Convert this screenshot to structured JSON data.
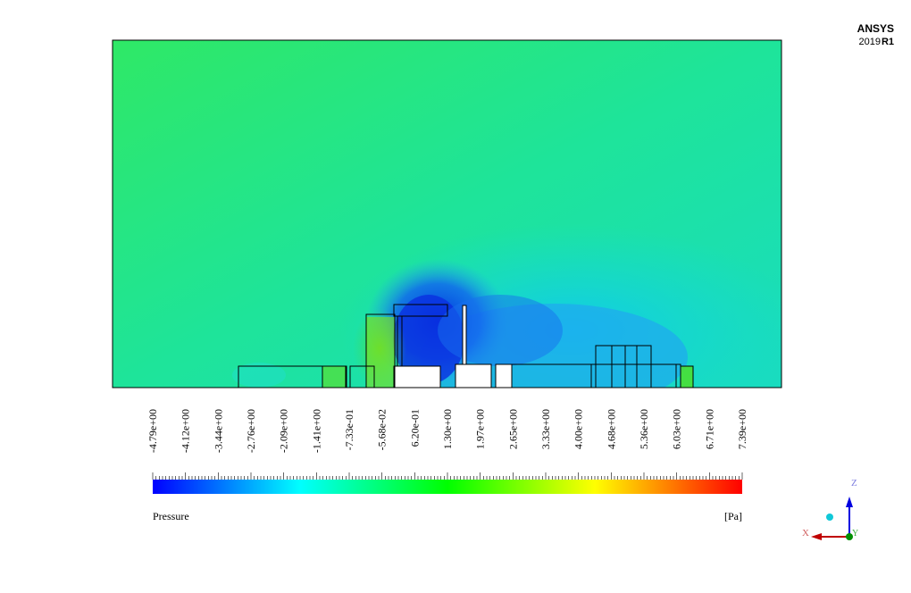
{
  "logo": {
    "name": "ANSYS",
    "version": "2019",
    "release": "R1"
  },
  "legend": {
    "ticks": [
      "-4.79e+00",
      "-4.12e+00",
      "-3.44e+00",
      "-2.76e+00",
      "-2.09e+00",
      "-1.41e+00",
      "-7.33e-01",
      "-5.68e-02",
      "6.20e-01",
      "1.30e+00",
      "1.97e+00",
      "2.65e+00",
      "3.33e+00",
      "4.00e+00",
      "4.68e+00",
      "5.36e+00",
      "6.03e+00",
      "6.71e+00",
      "7.39e+00"
    ],
    "title": "Pressure",
    "unit": "[Pa]"
  },
  "axes": {
    "x": "X",
    "y": "Y",
    "z": "Z"
  }
}
